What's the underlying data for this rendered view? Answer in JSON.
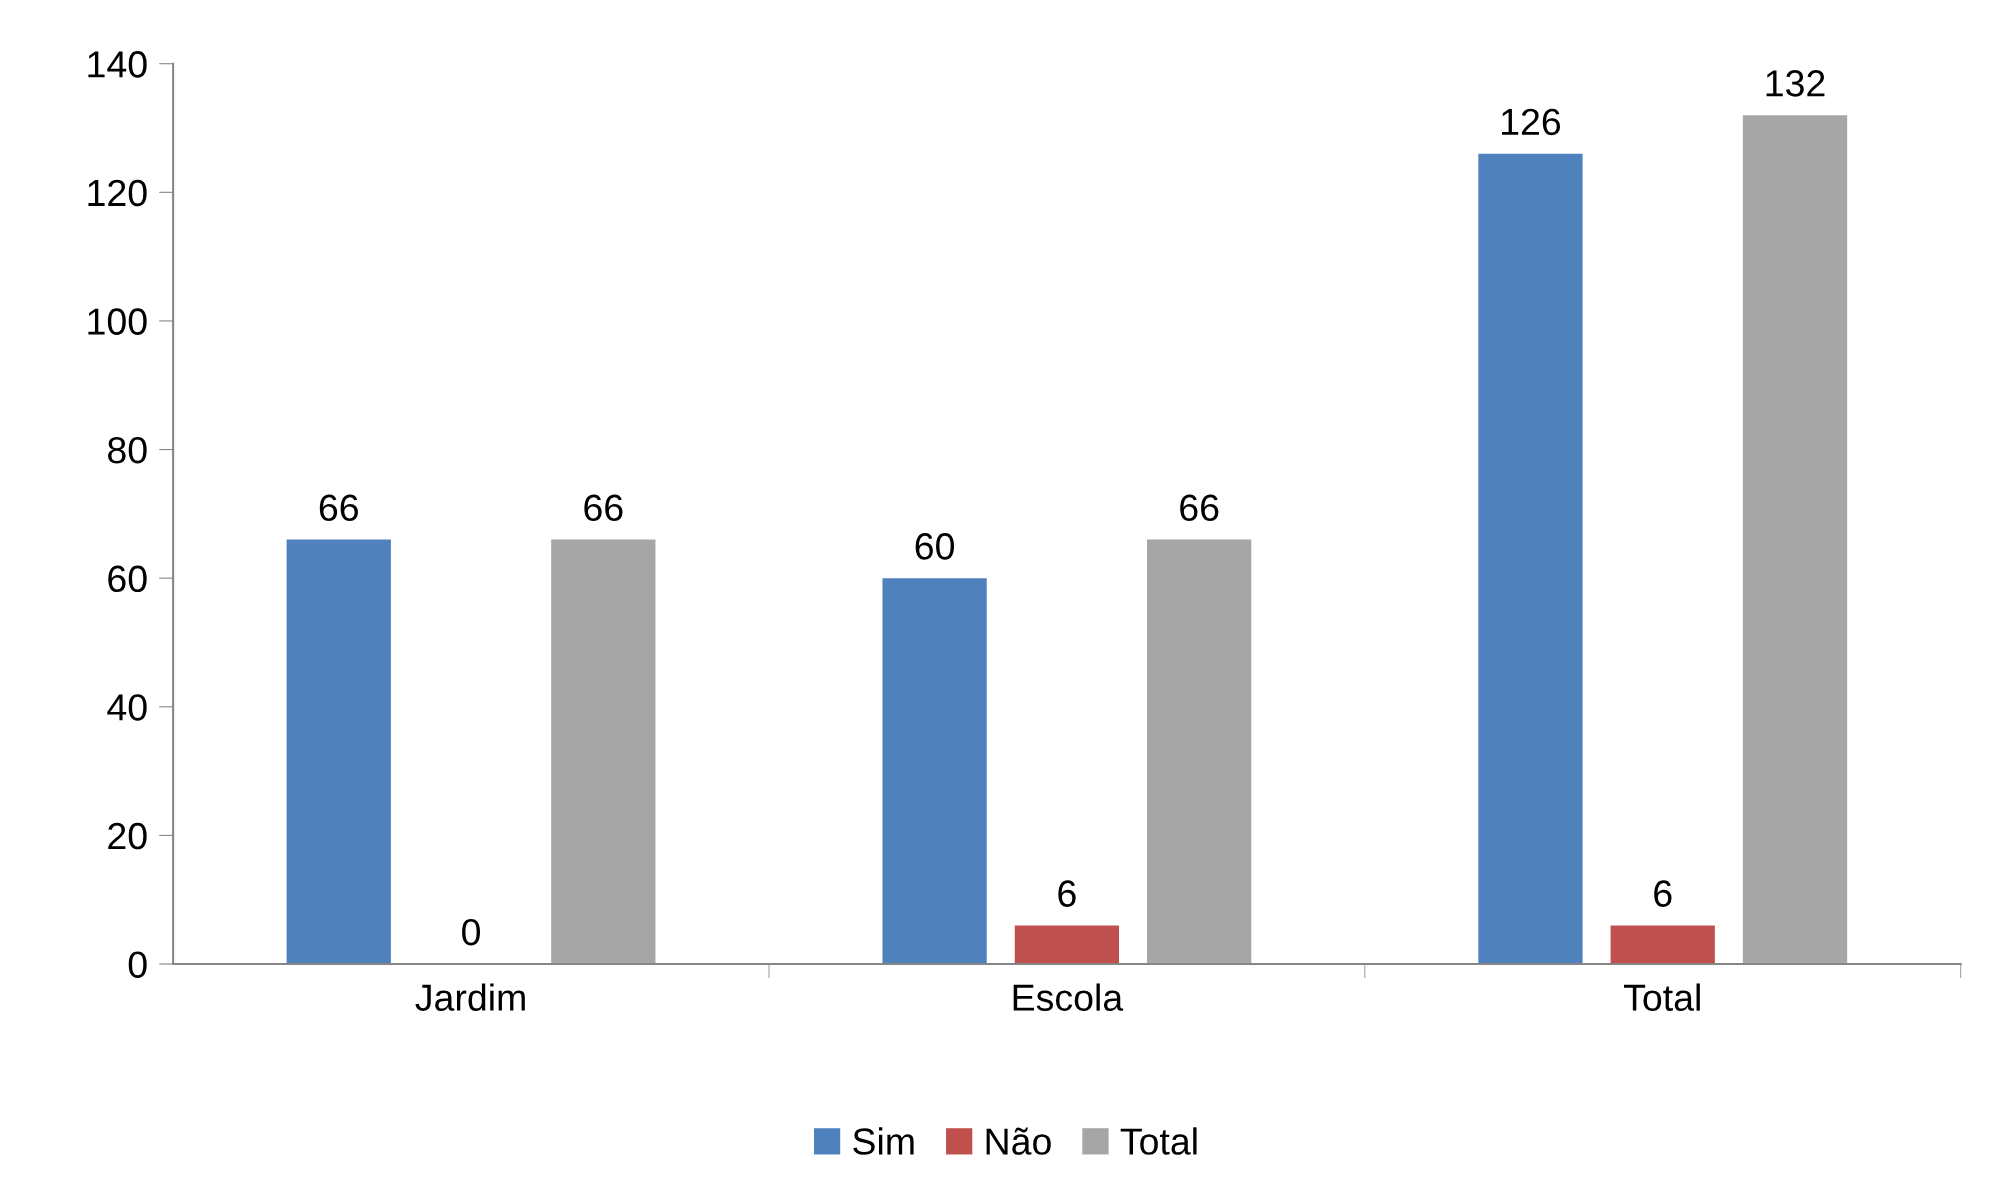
{
  "chart_data": {
    "type": "bar",
    "categories": [
      "Jardim",
      "Escola",
      "Total"
    ],
    "series": [
      {
        "name": "Sim",
        "color": "#4f81bd",
        "values": [
          66,
          60,
          126
        ]
      },
      {
        "name": "Não",
        "color": "#c0504d",
        "values": [
          0,
          6,
          6
        ]
      },
      {
        "name": "Total",
        "color": "#a6a6a6",
        "values": [
          66,
          66,
          132
        ]
      }
    ],
    "ylim": [
      0,
      140
    ],
    "yticks": [
      0,
      20,
      40,
      60,
      80,
      100,
      120,
      140
    ],
    "data_labels": true,
    "grid": false,
    "legend": "bottom"
  }
}
